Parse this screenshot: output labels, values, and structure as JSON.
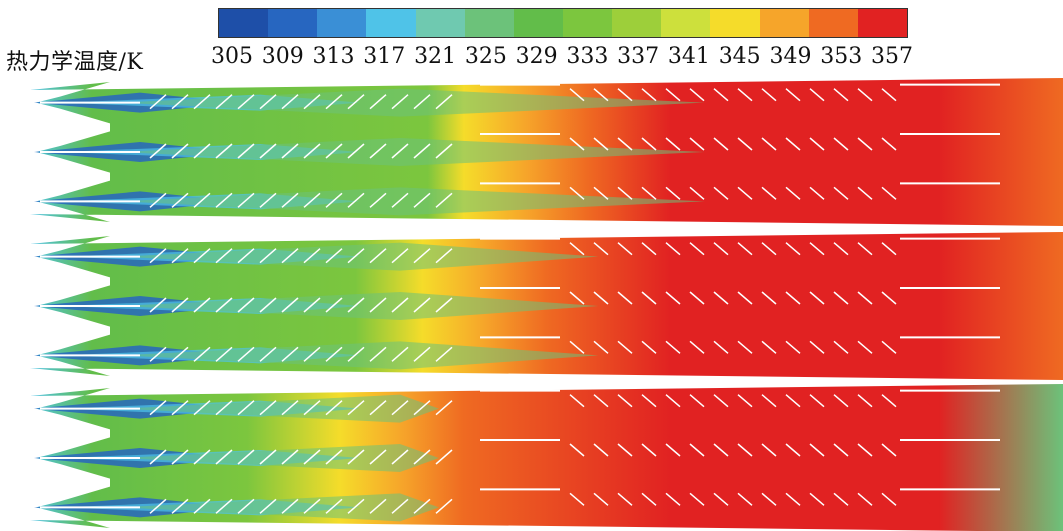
{
  "legend": {
    "label": "热力学温度/K",
    "ticks": [
      "305",
      "309",
      "313",
      "317",
      "321",
      "325",
      "329",
      "333",
      "337",
      "341",
      "345",
      "349",
      "353",
      "357"
    ],
    "colors": [
      "#1e4fa8",
      "#2766c0",
      "#3a8fd6",
      "#4fc3e8",
      "#6fc9b0",
      "#6cc27a",
      "#62bd4a",
      "#7cc63e",
      "#9dcf3a",
      "#cde03c",
      "#f5dc2a",
      "#f6a52a",
      "#ef6a22",
      "#e12222"
    ]
  },
  "panels": [
    {
      "id": "top",
      "hot_start": 0.42,
      "green_end": 0.55
    },
    {
      "id": "middle",
      "hot_start": 0.38,
      "green_end": 0.45
    },
    {
      "id": "bottom",
      "hot_start": 0.3,
      "green_end": 0.3
    }
  ]
}
